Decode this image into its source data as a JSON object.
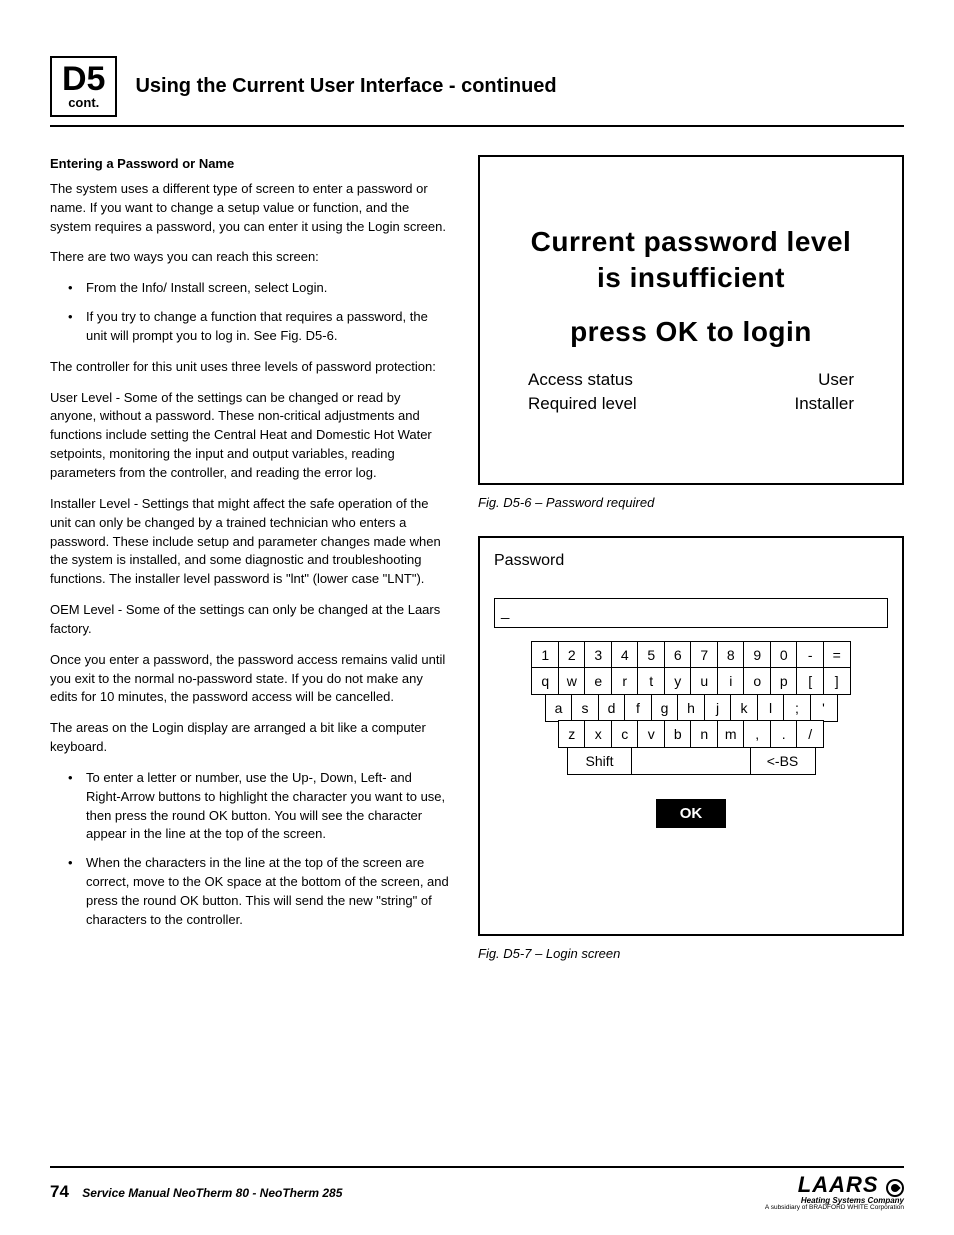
{
  "header": {
    "section_code": "D5",
    "section_sub": "cont.",
    "title": "Using the Current User Interface - continued"
  },
  "left": {
    "subhead": "Entering a Password or Name",
    "p1": "The system uses a different type of screen to enter a password or name.  If you want to change a setup value or function, and the system requires a password, you can enter it using the Login screen.",
    "p2": "There are two ways you can reach this screen:",
    "bullets1": [
      "From the Info/ Install screen, select Login.",
      "If you try to change a function that requires a password, the unit will prompt you to log in.  See Fig. D5-6."
    ],
    "p3": "The controller for this unit uses three levels of password protection:",
    "p4": "User Level - Some of the settings can be changed or read by anyone, without a password. These non-critical adjustments and functions include setting the Central Heat and Domestic Hot Water setpoints, monitoring the input and output variables, reading parameters from the controller, and reading the error log.",
    "p5": "Installer Level - Settings that might affect the safe operation of the unit can only be changed by a trained technician who enters a password. These include setup and parameter changes made when the system is installed, and some diagnostic and troubleshooting functions.  The installer level password is  \"lnt\" (lower case \"LNT\").",
    "p6": "OEM Level - Some of the settings can only be changed at the Laars factory.",
    "p7": "Once you enter a password, the password access remains valid until you exit to the normal no-password state.  If you do not make any edits for 10 minutes, the password access will be cancelled.",
    "p8": "The areas on the Login display are arranged a bit like a computer keyboard.",
    "bullets2": [
      "To enter a letter or number, use the Up-, Down, Left- and Right-Arrow buttons to highlight the character you want to use, then press the round OK button.  You will see the character appear in the line at the top of the screen.",
      "When the characters in the line at the top of the screen are correct, move to the OK space at the bottom of the screen, and press the round OK button.  This will send the new \"string\" of characters to the controller."
    ]
  },
  "fig1": {
    "line1": "Current password level",
    "line2": "is insufficient",
    "line3": "press OK to login",
    "access_label": "Access status",
    "access_value": "User",
    "required_label": "Required level",
    "required_value": "Installer",
    "caption": "Fig. D5-6 –  Password required"
  },
  "fig2": {
    "title": "Password",
    "input_value": "_",
    "rows": [
      [
        "1",
        "2",
        "3",
        "4",
        "5",
        "6",
        "7",
        "8",
        "9",
        "0",
        "-",
        "="
      ],
      [
        "q",
        "w",
        "e",
        "r",
        "t",
        "y",
        "u",
        "i",
        "o",
        "p",
        "[",
        "]"
      ],
      [
        "a",
        "s",
        "d",
        "f",
        "g",
        "h",
        "j",
        "k",
        "l",
        ";",
        "'"
      ],
      [
        "z",
        "x",
        "c",
        "v",
        "b",
        "n",
        "m",
        ",",
        ".",
        "/"
      ]
    ],
    "shift": "Shift",
    "space": " ",
    "bs": "<-BS",
    "ok": "OK",
    "caption": "Fig. D5-7 –  Login screen"
  },
  "footer": {
    "page": "74",
    "manual": "Service Manual NeoTherm 80 - NeoTherm 285",
    "brand": "LAARS",
    "sub1": "Heating Systems Company",
    "sub2": "A subsidiary of BRADFORD WHITE Corporation"
  },
  "colors": {
    "text": "#000000",
    "background": "#ffffff",
    "border": "#000000"
  }
}
